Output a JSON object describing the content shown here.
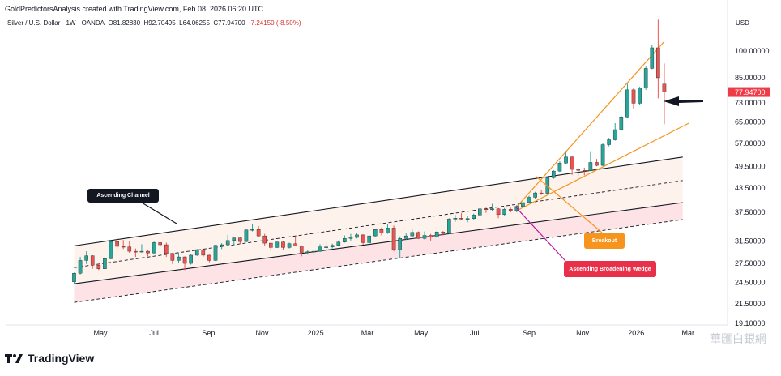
{
  "header": {
    "credit": "GoldPredictorsAnalysis created with TradingView.com, Feb 08, 2026 06:20 UTC"
  },
  "symbol_bar": {
    "name": "Silver / U.S. Dollar · 1W · OANDA",
    "open": "O81.82830",
    "high": "H92.70495",
    "low": "L64.06255",
    "close": "C77.94700",
    "change": "-7.24150 (-8.50%)"
  },
  "brand": {
    "name": "TradingView"
  },
  "watermark": {
    "text": "華匯白銀網"
  },
  "colors": {
    "up": "#26a69a",
    "down": "#ef5350",
    "channel_fill": "#fdf3ec",
    "channel_lower_fill": "#fde3e6",
    "wedge": "#f7941d",
    "breakout_box": "#f7941d",
    "wedge_box": "#e8304a",
    "channel_box": "#131722",
    "price_tag": "#ef3b47"
  },
  "chart_data": {
    "type": "candlestick",
    "currency_label": "USD",
    "last_price": "77.94700",
    "y_scale": "log",
    "ylim": [
      19.1,
      150
    ],
    "y_ticks": [
      "100.00000",
      "85.00000",
      "73.00000",
      "65.00000",
      "57.00000",
      "49.50000",
      "43.50000",
      "37.50000",
      "31.50000",
      "27.50000",
      "24.50000",
      "21.50000",
      "19.10000"
    ],
    "x_ticks": [
      "May",
      "Jul",
      "Sep",
      "Nov",
      "2025",
      "Mar",
      "May",
      "Jul",
      "Sep",
      "Nov",
      "2026",
      "Mar"
    ],
    "x_tick_values": [
      "2024-05",
      "2024-07",
      "2024-09",
      "2024-11",
      "2025-01",
      "2025-03",
      "2025-05",
      "2025-07",
      "2025-09",
      "2025-11",
      "2026-01",
      "2026-03"
    ],
    "candles": [
      {
        "date": "2024-04-01",
        "o": 24.6,
        "h": 26.0,
        "l": 24.3,
        "c": 25.9
      },
      {
        "date": "2024-04-08",
        "o": 25.9,
        "h": 28.6,
        "l": 25.7,
        "c": 28.0
      },
      {
        "date": "2024-04-15",
        "o": 28.0,
        "h": 29.6,
        "l": 27.4,
        "c": 28.8
      },
      {
        "date": "2024-04-22",
        "o": 28.8,
        "h": 28.9,
        "l": 26.6,
        "c": 27.2
      },
      {
        "date": "2024-04-29",
        "o": 27.2,
        "h": 27.5,
        "l": 26.4,
        "c": 26.6
      },
      {
        "date": "2024-05-06",
        "o": 26.6,
        "h": 28.6,
        "l": 26.5,
        "c": 28.3
      },
      {
        "date": "2024-05-13",
        "o": 28.3,
        "h": 31.6,
        "l": 28.2,
        "c": 31.4
      },
      {
        "date": "2024-05-20",
        "o": 31.4,
        "h": 32.5,
        "l": 29.8,
        "c": 30.5
      },
      {
        "date": "2024-05-27",
        "o": 30.5,
        "h": 31.7,
        "l": 30.0,
        "c": 30.4
      },
      {
        "date": "2024-06-03",
        "o": 30.4,
        "h": 31.5,
        "l": 29.3,
        "c": 29.6
      },
      {
        "date": "2024-06-10",
        "o": 29.6,
        "h": 30.1,
        "l": 28.6,
        "c": 29.5
      },
      {
        "date": "2024-06-17",
        "o": 29.5,
        "h": 30.9,
        "l": 29.4,
        "c": 29.6
      },
      {
        "date": "2024-06-24",
        "o": 29.6,
        "h": 29.8,
        "l": 28.7,
        "c": 29.3
      },
      {
        "date": "2024-07-01",
        "o": 29.3,
        "h": 31.4,
        "l": 29.1,
        "c": 31.2
      },
      {
        "date": "2024-07-08",
        "o": 31.2,
        "h": 31.3,
        "l": 30.4,
        "c": 30.8
      },
      {
        "date": "2024-07-15",
        "o": 30.8,
        "h": 31.2,
        "l": 28.6,
        "c": 29.2
      },
      {
        "date": "2024-07-22",
        "o": 29.2,
        "h": 29.3,
        "l": 27.4,
        "c": 28.0
      },
      {
        "date": "2024-07-29",
        "o": 28.0,
        "h": 29.4,
        "l": 27.6,
        "c": 28.6
      },
      {
        "date": "2024-08-05",
        "o": 28.6,
        "h": 28.7,
        "l": 26.4,
        "c": 27.5
      },
      {
        "date": "2024-08-12",
        "o": 27.5,
        "h": 29.1,
        "l": 27.3,
        "c": 28.9
      },
      {
        "date": "2024-08-19",
        "o": 28.9,
        "h": 30.0,
        "l": 28.8,
        "c": 29.9
      },
      {
        "date": "2024-08-26",
        "o": 29.9,
        "h": 30.0,
        "l": 28.6,
        "c": 28.9
      },
      {
        "date": "2024-09-02",
        "o": 28.9,
        "h": 29.0,
        "l": 27.7,
        "c": 28.0
      },
      {
        "date": "2024-09-09",
        "o": 28.0,
        "h": 30.8,
        "l": 27.9,
        "c": 30.7
      },
      {
        "date": "2024-09-16",
        "o": 30.7,
        "h": 31.1,
        "l": 30.0,
        "c": 30.8
      },
      {
        "date": "2024-09-23",
        "o": 30.8,
        "h": 32.7,
        "l": 30.6,
        "c": 31.6
      },
      {
        "date": "2024-09-30",
        "o": 31.6,
        "h": 32.2,
        "l": 30.9,
        "c": 32.1
      },
      {
        "date": "2024-10-07",
        "o": 32.1,
        "h": 32.3,
        "l": 30.9,
        "c": 31.4
      },
      {
        "date": "2024-10-14",
        "o": 31.4,
        "h": 33.8,
        "l": 31.3,
        "c": 33.7
      },
      {
        "date": "2024-10-21",
        "o": 33.7,
        "h": 34.9,
        "l": 33.4,
        "c": 33.8
      },
      {
        "date": "2024-10-28",
        "o": 33.8,
        "h": 34.5,
        "l": 32.3,
        "c": 32.5
      },
      {
        "date": "2024-11-04",
        "o": 32.5,
        "h": 32.9,
        "l": 30.5,
        "c": 31.1
      },
      {
        "date": "2024-11-11",
        "o": 31.1,
        "h": 31.2,
        "l": 29.7,
        "c": 30.3
      },
      {
        "date": "2024-11-18",
        "o": 30.3,
        "h": 31.4,
        "l": 30.2,
        "c": 31.3
      },
      {
        "date": "2024-11-25",
        "o": 31.3,
        "h": 31.5,
        "l": 29.8,
        "c": 30.3
      },
      {
        "date": "2024-12-02",
        "o": 30.3,
        "h": 31.2,
        "l": 30.1,
        "c": 31.0
      },
      {
        "date": "2024-12-09",
        "o": 31.0,
        "h": 32.3,
        "l": 30.5,
        "c": 30.6
      },
      {
        "date": "2024-12-16",
        "o": 30.6,
        "h": 30.7,
        "l": 28.7,
        "c": 29.4
      },
      {
        "date": "2024-12-23",
        "o": 29.4,
        "h": 29.9,
        "l": 29.0,
        "c": 29.5
      },
      {
        "date": "2024-12-30",
        "o": 29.5,
        "h": 29.8,
        "l": 28.9,
        "c": 29.6
      },
      {
        "date": "2025-01-06",
        "o": 29.6,
        "h": 30.9,
        "l": 29.5,
        "c": 30.4
      },
      {
        "date": "2025-01-13",
        "o": 30.4,
        "h": 31.3,
        "l": 29.8,
        "c": 30.4
      },
      {
        "date": "2025-01-20",
        "o": 30.4,
        "h": 31.0,
        "l": 30.1,
        "c": 30.7
      },
      {
        "date": "2025-01-27",
        "o": 30.7,
        "h": 31.6,
        "l": 30.5,
        "c": 31.3
      },
      {
        "date": "2025-02-03",
        "o": 31.3,
        "h": 32.6,
        "l": 31.2,
        "c": 32.0
      },
      {
        "date": "2025-02-10",
        "o": 32.0,
        "h": 32.9,
        "l": 31.6,
        "c": 32.2
      },
      {
        "date": "2025-02-17",
        "o": 32.2,
        "h": 33.1,
        "l": 32.0,
        "c": 32.7
      },
      {
        "date": "2025-02-24",
        "o": 32.7,
        "h": 32.8,
        "l": 30.8,
        "c": 31.2
      },
      {
        "date": "2025-03-03",
        "o": 31.2,
        "h": 32.6,
        "l": 31.0,
        "c": 32.5
      },
      {
        "date": "2025-03-10",
        "o": 32.5,
        "h": 34.0,
        "l": 32.3,
        "c": 33.8
      },
      {
        "date": "2025-03-17",
        "o": 33.8,
        "h": 34.2,
        "l": 32.6,
        "c": 33.1
      },
      {
        "date": "2025-03-24",
        "o": 33.1,
        "h": 35.0,
        "l": 32.9,
        "c": 34.1
      },
      {
        "date": "2025-03-31",
        "o": 34.1,
        "h": 34.6,
        "l": 29.6,
        "c": 29.9
      },
      {
        "date": "2025-04-07",
        "o": 29.9,
        "h": 32.4,
        "l": 28.4,
        "c": 32.0
      },
      {
        "date": "2025-04-14",
        "o": 32.0,
        "h": 33.0,
        "l": 31.7,
        "c": 32.5
      },
      {
        "date": "2025-04-21",
        "o": 32.5,
        "h": 33.8,
        "l": 32.3,
        "c": 33.2
      },
      {
        "date": "2025-04-28",
        "o": 33.2,
        "h": 33.4,
        "l": 31.9,
        "c": 32.0
      },
      {
        "date": "2025-05-05",
        "o": 32.0,
        "h": 33.4,
        "l": 31.8,
        "c": 32.6
      },
      {
        "date": "2025-05-12",
        "o": 32.6,
        "h": 32.9,
        "l": 31.6,
        "c": 32.3
      },
      {
        "date": "2025-05-19",
        "o": 32.3,
        "h": 33.5,
        "l": 32.1,
        "c": 33.3
      },
      {
        "date": "2025-05-26",
        "o": 33.3,
        "h": 33.5,
        "l": 32.6,
        "c": 33.0
      },
      {
        "date": "2025-06-02",
        "o": 33.0,
        "h": 36.2,
        "l": 32.9,
        "c": 36.0
      },
      {
        "date": "2025-06-09",
        "o": 36.0,
        "h": 36.9,
        "l": 35.4,
        "c": 36.2
      },
      {
        "date": "2025-06-16",
        "o": 36.2,
        "h": 37.3,
        "l": 35.8,
        "c": 36.0
      },
      {
        "date": "2025-06-23",
        "o": 36.0,
        "h": 36.6,
        "l": 35.3,
        "c": 36.1
      },
      {
        "date": "2025-06-30",
        "o": 36.1,
        "h": 37.2,
        "l": 35.9,
        "c": 36.9
      },
      {
        "date": "2025-07-07",
        "o": 36.9,
        "h": 38.4,
        "l": 36.6,
        "c": 38.3
      },
      {
        "date": "2025-07-14",
        "o": 38.3,
        "h": 38.6,
        "l": 37.4,
        "c": 38.2
      },
      {
        "date": "2025-07-21",
        "o": 38.2,
        "h": 39.5,
        "l": 37.8,
        "c": 38.3
      },
      {
        "date": "2025-07-28",
        "o": 38.3,
        "h": 38.5,
        "l": 36.2,
        "c": 37.0
      },
      {
        "date": "2025-08-04",
        "o": 37.0,
        "h": 38.5,
        "l": 36.8,
        "c": 38.2
      },
      {
        "date": "2025-08-11",
        "o": 38.2,
        "h": 38.6,
        "l": 37.5,
        "c": 37.9
      },
      {
        "date": "2025-08-18",
        "o": 37.9,
        "h": 39.2,
        "l": 37.5,
        "c": 38.9
      },
      {
        "date": "2025-08-25",
        "o": 38.9,
        "h": 40.0,
        "l": 38.6,
        "c": 39.8
      },
      {
        "date": "2025-09-01",
        "o": 39.8,
        "h": 41.5,
        "l": 39.6,
        "c": 41.1
      },
      {
        "date": "2025-09-08",
        "o": 41.1,
        "h": 42.5,
        "l": 40.6,
        "c": 42.2
      },
      {
        "date": "2025-09-15",
        "o": 42.2,
        "h": 43.0,
        "l": 41.7,
        "c": 42.1
      },
      {
        "date": "2025-09-22",
        "o": 42.1,
        "h": 46.5,
        "l": 42.0,
        "c": 46.3
      },
      {
        "date": "2025-09-29",
        "o": 46.3,
        "h": 48.5,
        "l": 46.0,
        "c": 48.2
      },
      {
        "date": "2025-10-06",
        "o": 48.2,
        "h": 51.2,
        "l": 47.9,
        "c": 50.6
      },
      {
        "date": "2025-10-13",
        "o": 50.6,
        "h": 54.4,
        "l": 50.3,
        "c": 52.5
      },
      {
        "date": "2025-10-20",
        "o": 52.5,
        "h": 52.7,
        "l": 47.1,
        "c": 48.7
      },
      {
        "date": "2025-10-27",
        "o": 48.7,
        "h": 49.1,
        "l": 46.8,
        "c": 48.4
      },
      {
        "date": "2025-11-03",
        "o": 48.4,
        "h": 49.2,
        "l": 47.0,
        "c": 48.3
      },
      {
        "date": "2025-11-10",
        "o": 48.3,
        "h": 54.4,
        "l": 48.2,
        "c": 50.8
      },
      {
        "date": "2025-11-17",
        "o": 50.8,
        "h": 51.9,
        "l": 49.6,
        "c": 49.9
      },
      {
        "date": "2025-11-24",
        "o": 49.9,
        "h": 57.2,
        "l": 49.7,
        "c": 56.6
      },
      {
        "date": "2025-12-01",
        "o": 56.6,
        "h": 59.0,
        "l": 56.0,
        "c": 58.3
      },
      {
        "date": "2025-12-08",
        "o": 58.3,
        "h": 64.5,
        "l": 58.0,
        "c": 62.0
      },
      {
        "date": "2025-12-15",
        "o": 62.0,
        "h": 67.5,
        "l": 61.6,
        "c": 67.0
      },
      {
        "date": "2025-12-22",
        "o": 67.0,
        "h": 82.0,
        "l": 66.6,
        "c": 79.0
      },
      {
        "date": "2025-12-29",
        "o": 79.0,
        "h": 80.0,
        "l": 70.5,
        "c": 72.8
      },
      {
        "date": "2026-01-05",
        "o": 72.8,
        "h": 80.5,
        "l": 72.0,
        "c": 79.8
      },
      {
        "date": "2026-01-12",
        "o": 79.8,
        "h": 91.0,
        "l": 79.0,
        "c": 90.0
      },
      {
        "date": "2026-01-19",
        "o": 90.0,
        "h": 103.5,
        "l": 89.5,
        "c": 102.0
      },
      {
        "date": "2026-01-26",
        "o": 102.0,
        "h": 121.0,
        "l": 75.0,
        "c": 85.0
      },
      {
        "date": "2026-02-02",
        "o": 81.8,
        "h": 92.7,
        "l": 64.1,
        "c": 77.9
      }
    ],
    "annotations": [
      {
        "label": "Ascending Channel"
      },
      {
        "label": "Breakout"
      },
      {
        "label": "Ascending Broadening Wedge"
      }
    ],
    "pattern_lines": {
      "channel_upper": [
        [
          "2024-04-01",
          30.6
        ],
        [
          "2026-02-23",
          52.5
        ]
      ],
      "channel_mid": [
        [
          "2024-04-01",
          26.8
        ],
        [
          "2026-02-23",
          45.5
        ]
      ],
      "channel_lower": [
        [
          "2024-04-01",
          24.3
        ],
        [
          "2026-02-23",
          39.8
        ]
      ],
      "channel_low2": [
        [
          "2024-04-01",
          21.7
        ],
        [
          "2026-02-23",
          35.9
        ]
      ],
      "wedge_upper": [
        [
          "2025-08-18",
          38.8
        ],
        [
          "2026-02-02",
          106.0
        ]
      ],
      "wedge_lower": [
        [
          "2025-08-18",
          37.9
        ],
        [
          "2026-03-02",
          64.5
        ]
      ]
    }
  }
}
